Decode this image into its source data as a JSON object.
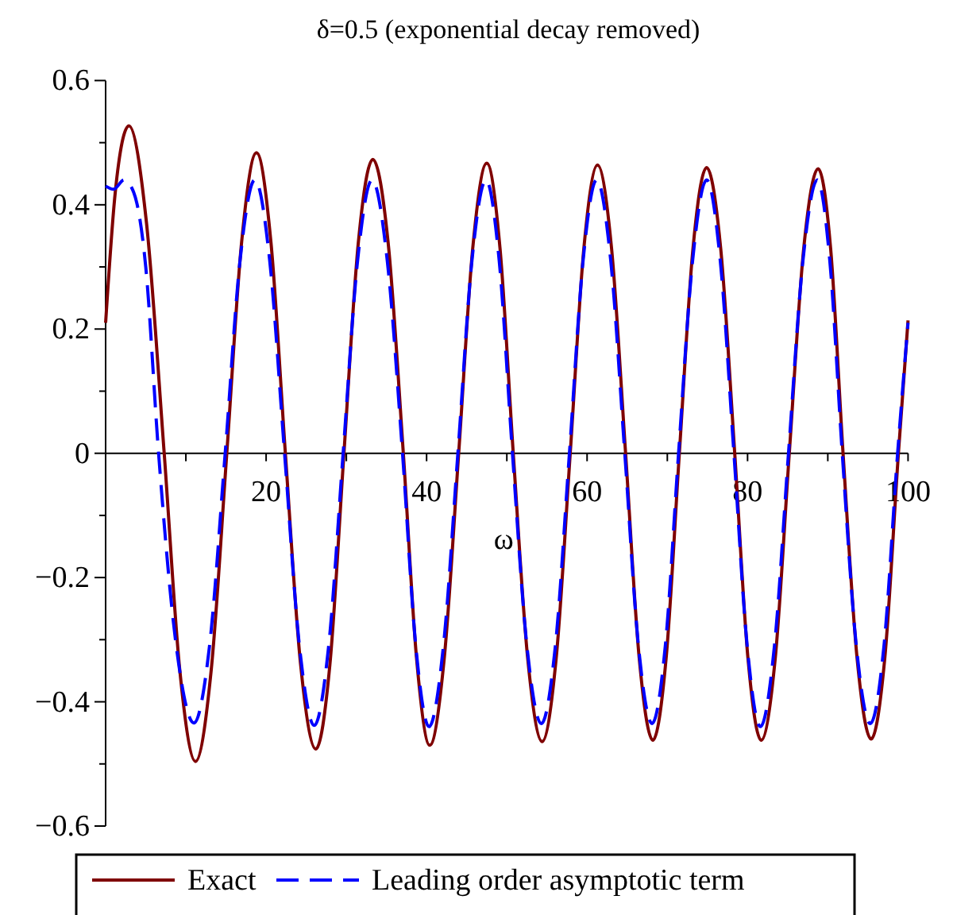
{
  "chart_data": {
    "type": "line",
    "title": "δ=0.5 (exponential decay removed)",
    "xlabel": "ω",
    "xlim": [
      0,
      100
    ],
    "ylim": [
      -0.6,
      0.6
    ],
    "xticks": [
      {
        "value": 10,
        "label": null
      },
      20,
      {
        "value": 30,
        "label": null
      },
      40,
      {
        "value": 50,
        "label": null
      },
      60,
      {
        "value": 70,
        "label": null
      },
      80,
      {
        "value": 90,
        "label": null
      },
      100
    ],
    "yticks": [
      -0.6,
      {
        "value": -0.5,
        "label": null
      },
      -0.4,
      {
        "value": -0.3,
        "label": null
      },
      -0.2,
      {
        "value": -0.1,
        "label": null
      },
      0,
      {
        "value": 0.1,
        "label": null
      },
      0.2,
      {
        "value": 0.3,
        "label": null
      },
      0.4,
      {
        "value": 0.5,
        "label": null
      },
      0.6
    ],
    "grid": false,
    "legend": "bottom",
    "series": [
      {
        "name": "Exact",
        "color": "#7f0000",
        "line_style": "solid",
        "x": [
          0,
          1.2,
          2.9,
          5.1,
          7.3,
          9.25,
          11.2,
          13.15,
          15.1,
          16.95,
          18.8,
          20.6,
          22.4,
          24.3,
          26.2,
          27.95,
          29.7,
          31.5,
          33.3,
          35.2,
          37.1,
          38.75,
          40.4,
          42.2,
          44,
          45.75,
          47.5,
          49.15,
          50.8,
          52.6,
          54.4,
          56.15,
          57.9,
          59.6,
          61.3,
          63.05,
          64.8,
          66.5,
          68.2,
          69.85,
          71.5,
          73.2,
          74.9,
          76.65,
          78.4,
          80.05,
          81.7,
          83.45,
          85.2,
          87,
          88.8,
          90.35,
          91.9,
          93.65,
          95.4,
          97.1,
          98.8,
          100
        ],
        "values": [
          0.21,
          0.42,
          0.527,
          0.37,
          0,
          -0.35,
          -0.496,
          -0.35,
          0,
          0.34,
          0.484,
          0.34,
          0,
          -0.34,
          -0.476,
          -0.34,
          0,
          0.34,
          0.473,
          0.34,
          0,
          -0.33,
          -0.47,
          -0.33,
          0,
          0.33,
          0.467,
          0.33,
          0,
          -0.33,
          -0.464,
          -0.33,
          0,
          0.33,
          0.464,
          0.33,
          0,
          -0.33,
          -0.462,
          -0.33,
          0,
          0.33,
          0.46,
          0.33,
          0,
          -0.33,
          -0.462,
          -0.33,
          0,
          0.33,
          0.458,
          0.33,
          0,
          -0.33,
          -0.46,
          -0.33,
          0,
          0.214
        ]
      },
      {
        "name": "Leading order asymptotic term",
        "color": "#0000ff",
        "line_style": "dashed",
        "x": [
          0,
          1,
          2.3,
          3.5,
          5,
          6.6,
          8.8,
          11,
          12.95,
          14.9,
          16.75,
          18.6,
          20.45,
          22.3,
          24.15,
          26,
          27.8,
          29.6,
          31.4,
          33.2,
          35.1,
          37,
          38.65,
          40.3,
          42.1,
          43.9,
          45.65,
          47.4,
          49.05,
          50.7,
          52.5,
          54.3,
          56.05,
          57.8,
          59.5,
          61.2,
          62.95,
          64.7,
          66.4,
          68.1,
          69.75,
          71.4,
          73.15,
          74.9,
          76.6,
          78.3,
          79.95,
          81.6,
          83.35,
          85.1,
          86.9,
          88.7,
          90.25,
          91.8,
          93.55,
          95.3,
          97,
          98.7,
          100
        ],
        "values": [
          0.43,
          0.425,
          0.44,
          0.42,
          0.3,
          0,
          -0.31,
          -0.434,
          -0.31,
          0,
          0.31,
          0.44,
          0.31,
          0,
          -0.31,
          -0.438,
          -0.31,
          0,
          0.31,
          0.44,
          0.31,
          0,
          -0.31,
          -0.44,
          -0.31,
          0,
          0.31,
          0.44,
          0.31,
          0,
          -0.31,
          -0.435,
          -0.31,
          0,
          0.31,
          0.44,
          0.31,
          0,
          -0.31,
          -0.435,
          -0.31,
          0,
          0.31,
          0.44,
          0.31,
          0,
          -0.31,
          -0.44,
          -0.31,
          0,
          0.31,
          0.44,
          0.31,
          0,
          -0.31,
          -0.435,
          -0.31,
          0,
          0.21
        ]
      }
    ]
  }
}
